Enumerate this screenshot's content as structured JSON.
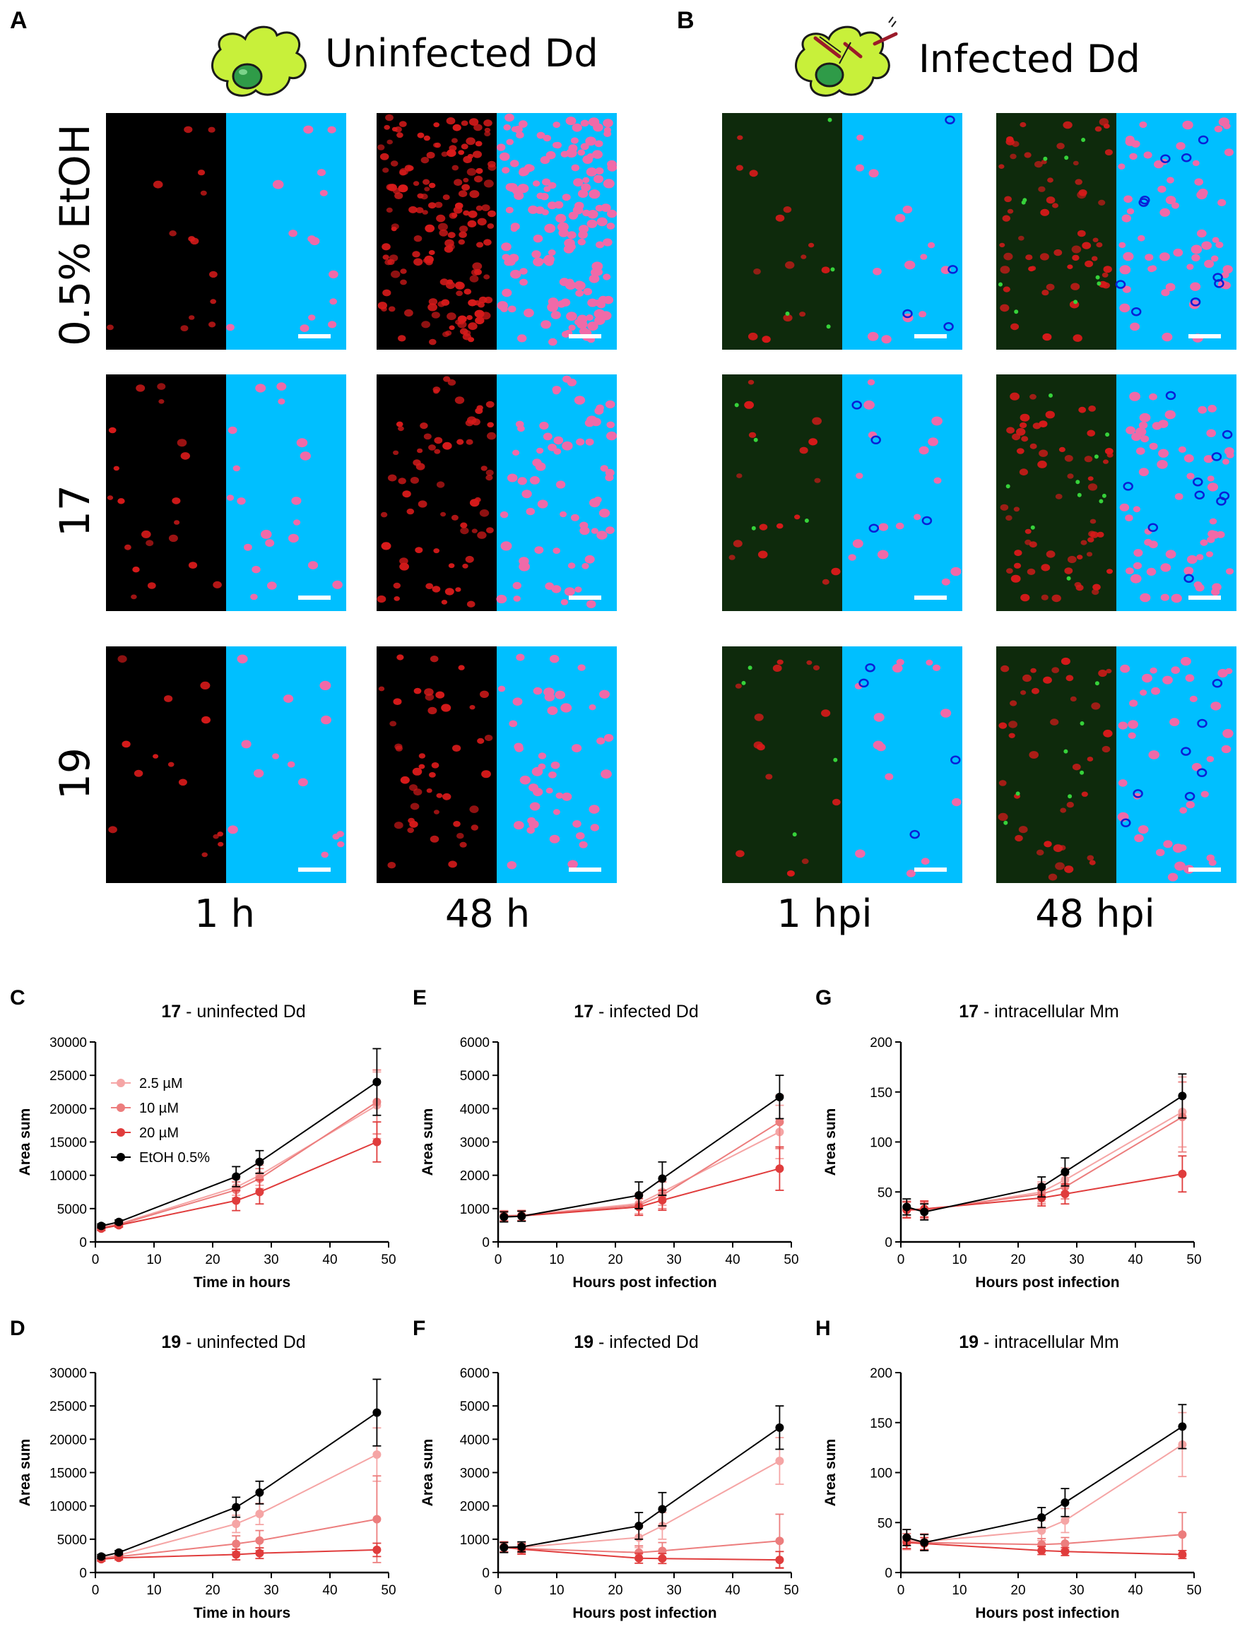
{
  "panel_A": {
    "letter": "A",
    "title": "Uninfected Dd",
    "row_labels": [
      "0.5% EtOH",
      "17",
      "19"
    ],
    "col_labels": [
      "1 h",
      "48 h"
    ]
  },
  "panel_B": {
    "letter": "B",
    "title": "Infected Dd",
    "col_labels": [
      "1 hpi",
      "48 hpi"
    ]
  },
  "colors": {
    "mask_bg": "#00bfff",
    "cell_pink": "#f06aa8",
    "cell_red": "#d81a1a",
    "bact_green": "#36d23a",
    "bact_blue": "#0a1fd6",
    "s_25": "#f5a5a5",
    "s_10": "#ec7d7d",
    "s_20": "#e03c3c",
    "s_etoh": "#000000"
  },
  "chart_data": [
    {
      "id": "C",
      "letter": "C",
      "type": "line",
      "title_bold": "17",
      "title_rest": " - uninfected Dd",
      "xlabel": "Time in hours",
      "ylabel": "Area sum",
      "xlim": [
        0,
        50
      ],
      "ylim": [
        0,
        30000
      ],
      "xticks": [
        0,
        10,
        20,
        30,
        40,
        50
      ],
      "yticks": [
        0,
        5000,
        10000,
        15000,
        20000,
        25000,
        30000
      ],
      "legend": [
        "2.5 µM",
        "10 µM",
        "20 µM",
        "EtOH 0.5%"
      ],
      "x": [
        1,
        4,
        24,
        28,
        48
      ],
      "series": [
        {
          "name": "2.5 µM",
          "values": [
            2200,
            2700,
            8200,
            10000,
            20500
          ],
          "err": [
            300,
            300,
            1200,
            1500,
            5000
          ]
        },
        {
          "name": "10 µM",
          "values": [
            2100,
            2600,
            7800,
            9500,
            21000
          ],
          "err": [
            300,
            300,
            1200,
            1500,
            4800
          ]
        },
        {
          "name": "20 µM",
          "values": [
            2000,
            2500,
            6200,
            7500,
            15000
          ],
          "err": [
            300,
            300,
            1500,
            1800,
            3000
          ]
        },
        {
          "name": "EtOH 0.5%",
          "values": [
            2400,
            3000,
            9800,
            12000,
            24000
          ],
          "err": [
            300,
            300,
            1500,
            1700,
            5000
          ]
        }
      ]
    },
    {
      "id": "E",
      "letter": "E",
      "type": "line",
      "title_bold": "17",
      "title_rest": " - infected Dd",
      "xlabel": "Hours post infection",
      "ylabel": "Area sum",
      "xlim": [
        0,
        50
      ],
      "ylim": [
        0,
        6000
      ],
      "xticks": [
        0,
        10,
        20,
        30,
        40,
        50
      ],
      "yticks": [
        0,
        1000,
        2000,
        3000,
        4000,
        5000,
        6000
      ],
      "x": [
        1,
        4,
        24,
        28,
        48
      ],
      "series": [
        {
          "name": "2.5 µM",
          "values": [
            790,
            800,
            1150,
            1500,
            3300
          ],
          "err": [
            150,
            150,
            300,
            400,
            800
          ]
        },
        {
          "name": "10 µM",
          "values": [
            780,
            790,
            1100,
            1400,
            3600
          ],
          "err": [
            150,
            150,
            300,
            400,
            800
          ]
        },
        {
          "name": "20 µM",
          "values": [
            760,
            780,
            1050,
            1250,
            2200
          ],
          "err": [
            150,
            150,
            250,
            300,
            650
          ]
        },
        {
          "name": "EtOH 0.5%",
          "values": [
            750,
            770,
            1400,
            1900,
            4350
          ],
          "err": [
            150,
            150,
            400,
            500,
            650
          ]
        }
      ]
    },
    {
      "id": "G",
      "letter": "G",
      "type": "line",
      "title_bold": "17",
      "title_rest": " - intracellular Mm",
      "xlabel": "Hours post infection",
      "ylabel": "Area sum",
      "xlim": [
        0,
        50
      ],
      "ylim": [
        0,
        200
      ],
      "xticks": [
        0,
        10,
        20,
        30,
        40,
        50
      ],
      "yticks": [
        0,
        50,
        100,
        150,
        200
      ],
      "x": [
        1,
        4,
        24,
        28,
        48
      ],
      "series": [
        {
          "name": "2.5 µM",
          "values": [
            33,
            31,
            50,
            62,
            130
          ],
          "err": [
            8,
            8,
            10,
            12,
            35
          ]
        },
        {
          "name": "10 µM",
          "values": [
            32,
            32,
            48,
            55,
            125
          ],
          "err": [
            8,
            8,
            10,
            12,
            35
          ]
        },
        {
          "name": "20 µM",
          "values": [
            32,
            33,
            44,
            48,
            68
          ],
          "err": [
            8,
            8,
            8,
            10,
            18
          ]
        },
        {
          "name": "EtOH 0.5%",
          "values": [
            35,
            30,
            55,
            70,
            146
          ],
          "err": [
            8,
            8,
            10,
            14,
            22
          ]
        }
      ]
    },
    {
      "id": "D",
      "letter": "D",
      "type": "line",
      "title_bold": "19",
      "title_rest": " - uninfected Dd",
      "xlabel": "Time in hours",
      "ylabel": "Area sum",
      "xlim": [
        0,
        50
      ],
      "ylim": [
        0,
        30000
      ],
      "xticks": [
        0,
        10,
        20,
        30,
        40,
        50
      ],
      "yticks": [
        0,
        5000,
        10000,
        15000,
        20000,
        25000,
        30000
      ],
      "x": [
        1,
        4,
        24,
        28,
        48
      ],
      "series": [
        {
          "name": "2.5 µM",
          "values": [
            2200,
            2600,
            7300,
            8800,
            17700
          ],
          "err": [
            300,
            300,
            1300,
            1600,
            4000
          ]
        },
        {
          "name": "10 µM",
          "values": [
            2100,
            2400,
            4300,
            4800,
            8000
          ],
          "err": [
            300,
            300,
            1200,
            1500,
            6500
          ]
        },
        {
          "name": "20 µM",
          "values": [
            2000,
            2200,
            2700,
            2900,
            3400
          ],
          "err": [
            300,
            300,
            800,
            800,
            1000
          ]
        },
        {
          "name": "EtOH 0.5%",
          "values": [
            2400,
            3000,
            9800,
            12000,
            24000
          ],
          "err": [
            300,
            300,
            1500,
            1700,
            5000
          ]
        }
      ]
    },
    {
      "id": "F",
      "letter": "F",
      "type": "line",
      "title_bold": "19",
      "title_rest": " - infected Dd",
      "xlabel": "Hours post infection",
      "ylabel": "Area sum",
      "xlim": [
        0,
        50
      ],
      "ylim": [
        0,
        6000
      ],
      "xticks": [
        0,
        10,
        20,
        30,
        40,
        50
      ],
      "yticks": [
        0,
        1000,
        2000,
        3000,
        4000,
        5000,
        6000
      ],
      "x": [
        1,
        4,
        24,
        28,
        48
      ],
      "series": [
        {
          "name": "2.5 µM",
          "values": [
            780,
            760,
            1050,
            1400,
            3350
          ],
          "err": [
            150,
            150,
            300,
            400,
            700
          ]
        },
        {
          "name": "10 µM",
          "values": [
            770,
            720,
            600,
            650,
            950
          ],
          "err": [
            150,
            150,
            200,
            250,
            800
          ]
        },
        {
          "name": "20 µM",
          "values": [
            760,
            700,
            430,
            420,
            380
          ],
          "err": [
            150,
            150,
            150,
            150,
            250
          ]
        },
        {
          "name": "EtOH 0.5%",
          "values": [
            750,
            770,
            1400,
            1900,
            4350
          ],
          "err": [
            150,
            150,
            400,
            500,
            650
          ]
        }
      ]
    },
    {
      "id": "H",
      "letter": "H",
      "type": "line",
      "title_bold": "19",
      "title_rest": " - intracellular Mm",
      "xlabel": "Hours post infection",
      "ylabel": "Area sum",
      "xlim": [
        0,
        50
      ],
      "ylim": [
        0,
        200
      ],
      "xticks": [
        0,
        10,
        20,
        30,
        40,
        50
      ],
      "yticks": [
        0,
        50,
        100,
        150,
        200
      ],
      "x": [
        1,
        4,
        24,
        28,
        48
      ],
      "series": [
        {
          "name": "2.5 µM",
          "values": [
            33,
            31,
            42,
            52,
            128
          ],
          "err": [
            10,
            8,
            10,
            12,
            32
          ]
        },
        {
          "name": "10 µM",
          "values": [
            31,
            30,
            28,
            29,
            38
          ],
          "err": [
            8,
            8,
            6,
            6,
            22
          ]
        },
        {
          "name": "20 µM",
          "values": [
            30,
            29,
            22,
            21,
            18
          ],
          "err": [
            6,
            6,
            4,
            4,
            4
          ]
        },
        {
          "name": "EtOH 0.5%",
          "values": [
            35,
            30,
            55,
            70,
            146
          ],
          "err": [
            8,
            8,
            10,
            14,
            22
          ]
        }
      ]
    }
  ]
}
